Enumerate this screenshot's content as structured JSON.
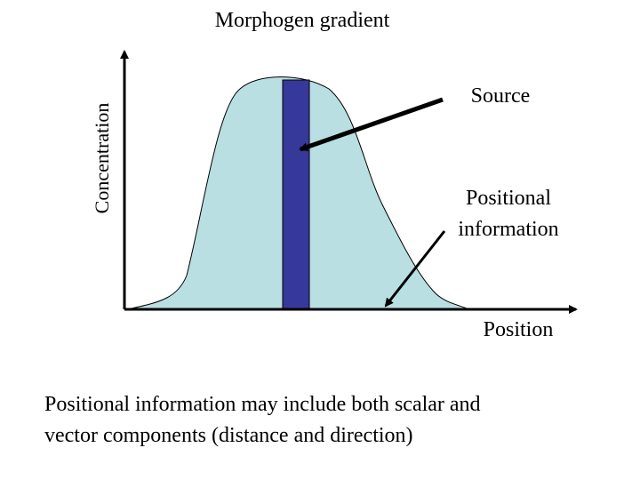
{
  "title": "Morphogen gradient",
  "y_axis_label": "Concentration",
  "x_axis_label": "Position",
  "labels": {
    "source": "Source",
    "positional_information": [
      "Positional",
      "information"
    ]
  },
  "caption": [
    "Positional information may include both scalar and",
    "vector components (distance and direction)"
  ]
}
